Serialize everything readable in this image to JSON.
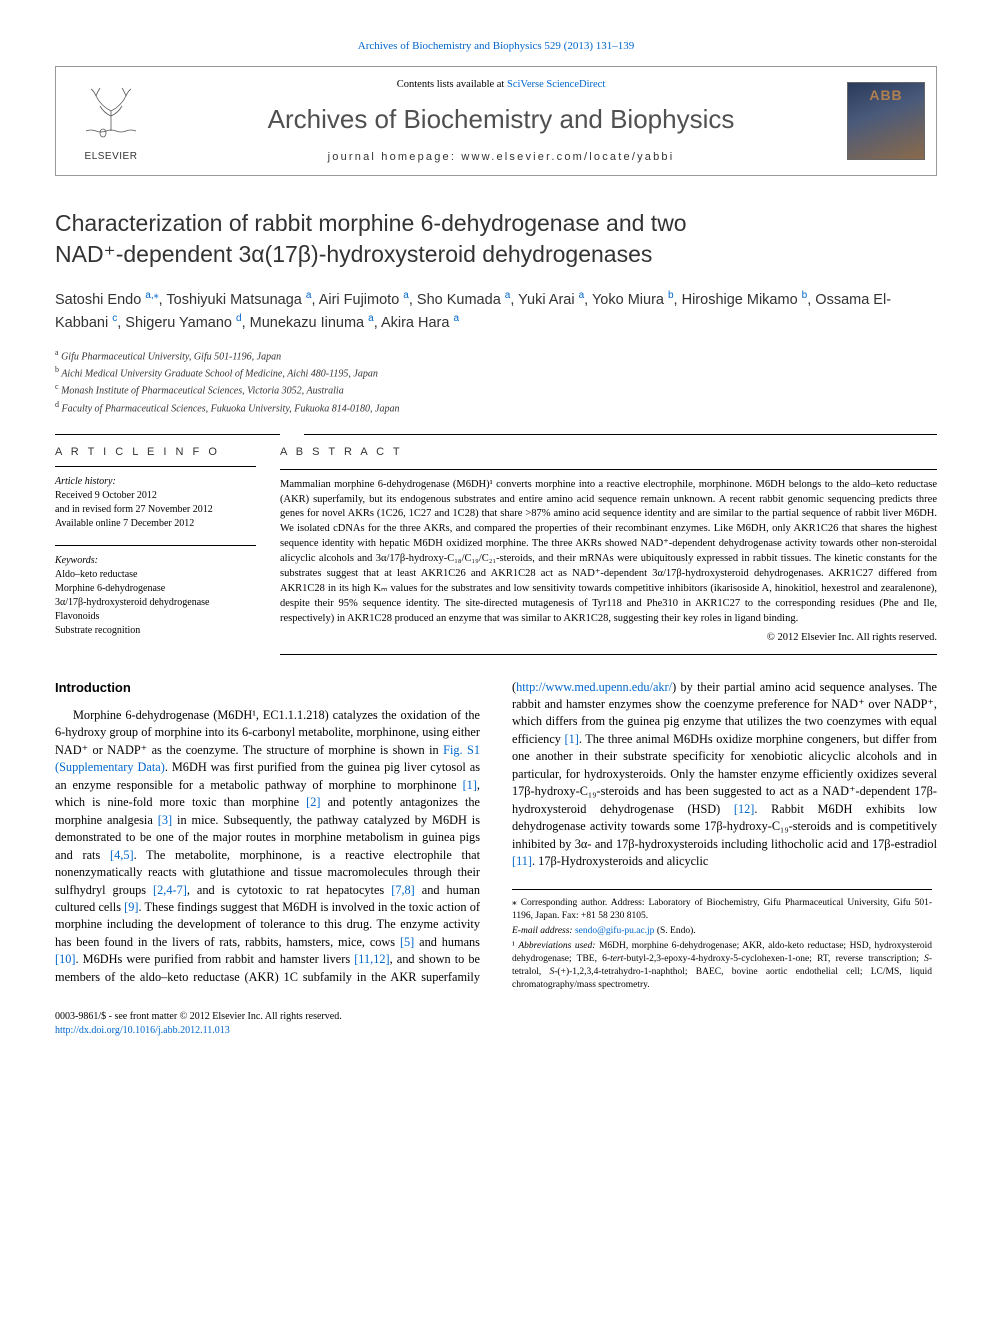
{
  "topLink": {
    "journal": "Archives of Biochemistry and Biophysics 529 (2013) 131–139",
    "color": "#0066cc"
  },
  "header": {
    "contentsPrefix": "Contents lists available at ",
    "contentsLink": "SciVerse ScienceDirect",
    "journalName": "Archives of Biochemistry and Biophysics",
    "homepagePrefix": "journal homepage: ",
    "homepageUrl": "www.elsevier.com/locate/yabbi",
    "publisherLabel": "ELSEVIER",
    "badgeText": "ABB"
  },
  "title": {
    "line1": "Characterization of rabbit morphine 6-dehydrogenase and two",
    "line2": "NAD⁺-dependent 3α(17β)-hydroxysteroid dehydrogenases"
  },
  "authors": "Satoshi Endo <sup>a,</sup><span class='star'><sup>⁎</sup></span>, Toshiyuki Matsunaga <sup>a</sup>, Airi Fujimoto <sup>a</sup>, Sho Kumada <sup>a</sup>, Yuki Arai <sup>a</sup>, Yoko Miura <sup>b</sup>, Hiroshige Mikamo <sup>b</sup>, Ossama El-Kabbani <sup>c</sup>, Shigeru Yamano <sup>d</sup>, Munekazu Iinuma <sup>a</sup>, Akira Hara <sup>a</sup>",
  "affiliations": [
    {
      "sup": "a",
      "text": "Gifu Pharmaceutical University, Gifu 501-1196, Japan"
    },
    {
      "sup": "b",
      "text": "Aichi Medical University Graduate School of Medicine, Aichi 480-1195, Japan"
    },
    {
      "sup": "c",
      "text": "Monash Institute of Pharmaceutical Sciences, Victoria 3052, Australia"
    },
    {
      "sup": "d",
      "text": "Faculty of Pharmaceutical Sciences, Fukuoka University, Fukuoka 814-0180, Japan"
    }
  ],
  "articleInfo": {
    "heading": "A R T I C L E   I N F O",
    "historyLabel": "Article history:",
    "history": [
      "Received 9 October 2012",
      "and in revised form 27 November 2012",
      "Available online 7 December 2012"
    ],
    "keywordsLabel": "Keywords:",
    "keywords": [
      "Aldo–keto reductase",
      "Morphine 6-dehydrogenase",
      "3α/17β-hydroxysteroid dehydrogenase",
      "Flavonoids",
      "Substrate recognition"
    ]
  },
  "abstract": {
    "heading": "A B S T R A C T",
    "body": "Mammalian morphine 6-dehydrogenase (M6DH)¹ converts morphine into a reactive electrophile, morphinone. M6DH belongs to the aldo–keto reductase (AKR) superfamily, but its endogenous substrates and entire amino acid sequence remain unknown. A recent rabbit genomic sequencing predicts three genes for novel AKRs (1C26, 1C27 and 1C28) that share >87% amino acid sequence identity and are similar to the partial sequence of rabbit liver M6DH. We isolated cDNAs for the three AKRs, and compared the properties of their recombinant enzymes. Like M6DH, only AKR1C26 that shares the highest sequence identity with hepatic M6DH oxidized morphine. The three AKRs showed NAD⁺-dependent dehydrogenase activity towards other non-steroidal alicyclic alcohols and 3α/17β-hydroxy-C₁₈/C₁₉/C₂₁-steroids, and their mRNAs were ubiquitously expressed in rabbit tissues. The kinetic constants for the substrates suggest that at least AKR1C26 and AKR1C28 act as NAD⁺-dependent 3α/17β-hydroxysteroid dehydrogenases. AKR1C27 differed from AKR1C28 in its high Kₘ values for the substrates and low sensitivity towards competitive inhibitors (ikarisoside A, hinokitiol, hexestrol and zearalenone), despite their 95% sequence identity. The site-directed mutagenesis of Tyr118 and Phe310 in AKR1C27 to the corresponding residues (Phe and Ile, respectively) in AKR1C28 produced an enzyme that was similar to AKR1C28, suggesting their key roles in ligand binding.",
    "copyright": "© 2012 Elsevier Inc. All rights reserved."
  },
  "intro": {
    "heading": "Introduction",
    "body": "Morphine 6-dehydrogenase (M6DH¹, EC1.1.1.218) catalyzes the oxidation of the 6-hydroxy group of morphine into its 6-carbonyl metabolite, morphinone, using either NAD⁺ or NADP⁺ as the coenzyme. The structure of morphine is shown in <span class='link'>Fig. S1 (Supplementary Data)</span>. M6DH was first purified from the guinea pig liver cytosol as an enzyme responsible for a metabolic pathway of morphine to morphinone <span class='link'>[1]</span>, which is nine-fold more toxic than morphine <span class='link'>[2]</span> and potently antagonizes the morphine analgesia <span class='link'>[3]</span> in mice. Subsequently, the pathway catalyzed by M6DH is demonstrated to be one of the major routes in morphine metabolism in guinea pigs and rats <span class='link'>[4,5]</span>. The metabolite, morphinone, is a reactive electrophile that nonenzymatically reacts with glutathione and tissue macromolecules through their sulfhydryl groups <span class='link'>[2,4-7]</span>, and is cytotoxic to rat hepatocytes <span class='link'>[7,8]</span> and human cultured cells <span class='link'>[9]</span>. These findings suggest that M6DH is involved in the toxic action of morphine including the development of tolerance to this drug. The enzyme activity has been found in the livers of rats, rabbits, hamsters, mice, cows <span class='link'>[5]</span> and humans <span class='link'>[10]</span>. M6DHs were purified from rabbit and hamster livers <span class='link'>[11,12]</span>, and shown to be members of the aldo–keto reductase (AKR) 1C subfamily in the AKR superfamily (<span class='link'>http://www.med.upenn.edu/akr/</span>) by their partial amino acid sequence analyses. The rabbit and hamster enzymes show the coenzyme preference for NAD⁺ over NADP⁺, which differs from the guinea pig enzyme that utilizes the two coenzymes with equal efficiency <span class='link'>[1]</span>. The three animal M6DHs oxidize morphine congeners, but differ from one another in their substrate specificity for xenobiotic alicyclic alcohols and in particular, for hydroxysteroids. Only the hamster enzyme efficiently oxidizes several 17β-hydroxy-C₁₉-steroids and has been suggested to act as a NAD⁺-dependent 17β-hydroxysteroid dehydrogenase (HSD) <span class='link'>[12]</span>. Rabbit M6DH exhibits low dehydrogenase activity towards some 17β-hydroxy-C₁₉-steroids and is competitively inhibited by 3α- and 17β-hydroxysteroids including lithocholic acid and 17β-estradiol <span class='link'>[11]</span>. 17β-Hydroxysteroids and alicyclic"
  },
  "footnotes": {
    "corr": "⁎ Corresponding author. Address: Laboratory of Biochemistry, Gifu Pharmaceutical University, Gifu 501-1196, Japan. Fax: +81 58 230 8105.",
    "emailLabel": "E-mail address: ",
    "email": "sendo@gifu-pu.ac.jp",
    "emailSuffix": " (S. Endo).",
    "abbrev": "¹ <span class='italic'>Abbreviations used:</span> M6DH, morphine 6-dehydrogenase; AKR, aldo-keto reductase; HSD, hydroxysteroid dehydrogenase; TBE, 6-<span class='italic'>tert</span>-butyl-2,3-epoxy-4-hydroxy-5-cyclohexen-1-one; RT, reverse transcription; <span class='italic'>S</span>-tetralol, <span class='italic'>S</span>-(+)-1,2,3,4-tetrahydro-1-naphthol; BAEC, bovine aortic endothelial cell; LC/MS, liquid chromatography/mass spectrometry."
  },
  "bottom": {
    "issn": "0003-9861/$ - see front matter © 2012 Elsevier Inc. All rights reserved.",
    "doi": "http://dx.doi.org/10.1016/j.abb.2012.11.013"
  },
  "colors": {
    "link": "#0066cc",
    "text": "#000000",
    "heading": "#333333"
  }
}
